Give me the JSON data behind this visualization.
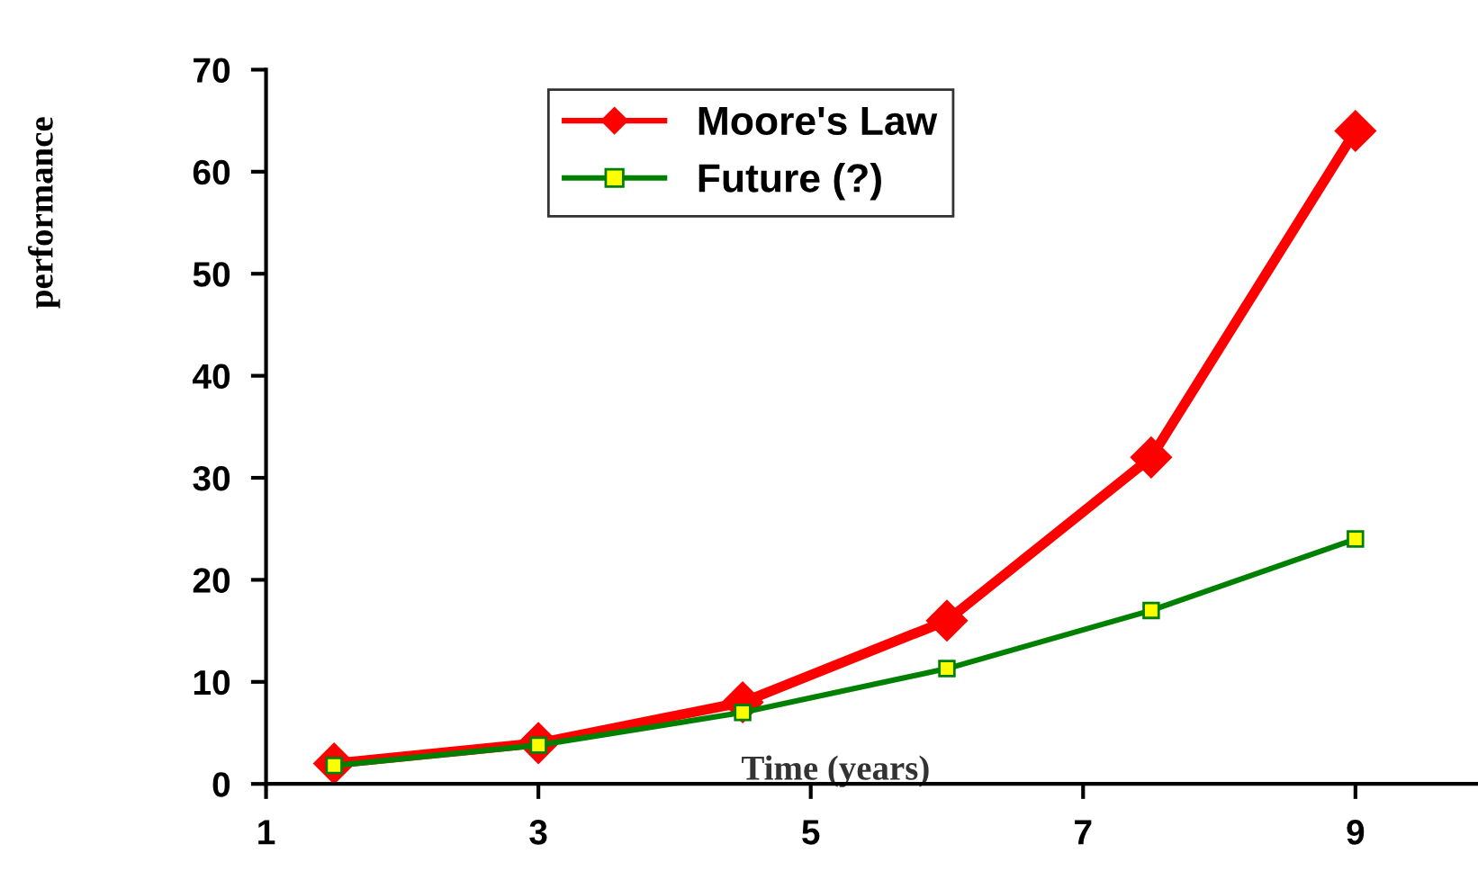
{
  "chart_data": {
    "type": "line",
    "xlabel": "Time (years)",
    "ylabel": "performance",
    "x": [
      1.5,
      3,
      4.5,
      6,
      7.5,
      9
    ],
    "series": [
      {
        "name": "Moore's Law",
        "color": "#ff0000",
        "marker": "diamond",
        "values": [
          2,
          4,
          8,
          16,
          32,
          64
        ]
      },
      {
        "name": "Future (?)",
        "color": "#008000",
        "marker": "square",
        "values": [
          1.8,
          3.8,
          7,
          11.3,
          17,
          24
        ]
      }
    ],
    "xlim": [
      1,
      9.9
    ],
    "xticks": [
      1,
      3,
      5,
      7,
      9
    ],
    "ylim": [
      0,
      70
    ],
    "yticks": [
      0,
      10,
      20,
      30,
      40,
      50,
      60,
      70
    ],
    "grid": false,
    "legend": "top",
    "line_style": "solid"
  }
}
